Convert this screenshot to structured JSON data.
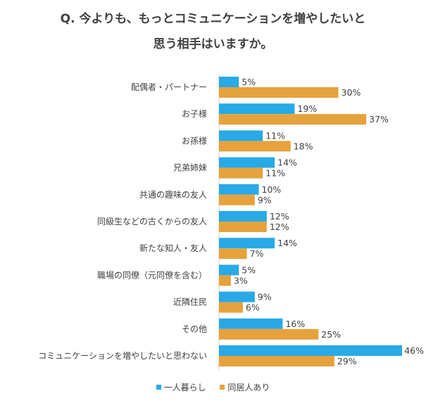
{
  "chart_data": {
    "type": "bar",
    "orientation": "horizontal",
    "title_line1": "Q. 今よりも、もっとコミュニケーションを増やしたいと",
    "title_line2": "思う相手はいますか。",
    "categories": [
      "配偶者・パートナー",
      "お子様",
      "お孫様",
      "兄弟姉妹",
      "共通の趣味の友人",
      "同級生などの古くからの友人",
      "新たな知人・友人",
      "職場の同僚（元同僚を含む）",
      "近隣住民",
      "その他",
      "コミュニケーションを増やしたいと思わない"
    ],
    "series": [
      {
        "name": "一人暮らし",
        "color": "#29a9e6",
        "values": [
          5,
          19,
          11,
          14,
          10,
          12,
          14,
          5,
          9,
          16,
          46
        ]
      },
      {
        "name": "同居人あり",
        "color": "#e6a23c",
        "values": [
          30,
          37,
          18,
          11,
          9,
          12,
          7,
          3,
          6,
          25,
          29
        ]
      }
    ],
    "unit": "%",
    "xlim": [
      0,
      46
    ],
    "grid": false,
    "legend": "bottom"
  }
}
